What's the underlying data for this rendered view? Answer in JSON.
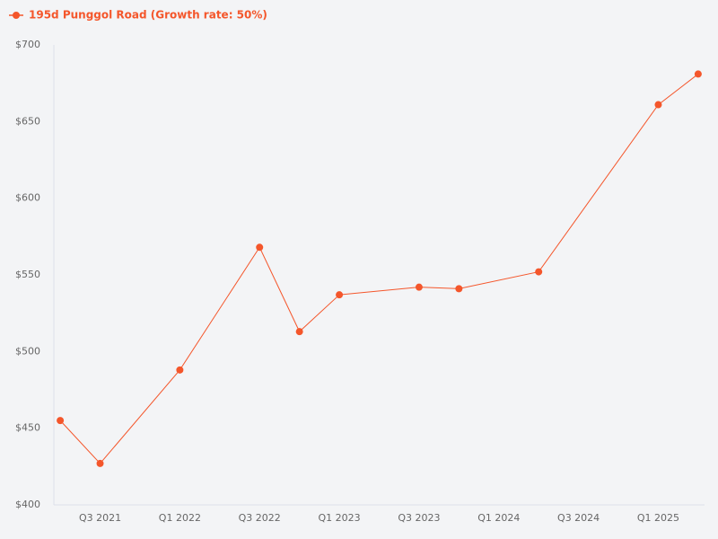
{
  "chart_data": {
    "type": "line",
    "series": [
      {
        "name": "195d Punggol Road (Growth rate: 50%)",
        "color": "#f4562b",
        "x": [
          2021.25,
          2021.5,
          2022.0,
          2022.5,
          2022.75,
          2023.0,
          2023.5,
          2023.75,
          2024.25,
          2025.0,
          2025.25
        ],
        "values": [
          455,
          427,
          488,
          568,
          513,
          537,
          542,
          541,
          552,
          661,
          681
        ]
      }
    ],
    "xlim": [
      2021.21,
      2025.29
    ],
    "xticks": [
      {
        "value": 2021.5,
        "label": "Q3 2021"
      },
      {
        "value": 2022.0,
        "label": "Q1 2022"
      },
      {
        "value": 2022.5,
        "label": "Q3 2022"
      },
      {
        "value": 2023.0,
        "label": "Q1 2023"
      },
      {
        "value": 2023.5,
        "label": "Q3 2023"
      },
      {
        "value": 2024.0,
        "label": "Q1 2024"
      },
      {
        "value": 2024.5,
        "label": "Q3 2024"
      },
      {
        "value": 2025.0,
        "label": "Q1 2025"
      }
    ],
    "ylim": [
      400,
      700
    ],
    "yticks": [
      {
        "value": 400,
        "label": "$400"
      },
      {
        "value": 450,
        "label": "$450"
      },
      {
        "value": 500,
        "label": "$500"
      },
      {
        "value": 550,
        "label": "$550"
      },
      {
        "value": 600,
        "label": "$600"
      },
      {
        "value": 650,
        "label": "$650"
      },
      {
        "value": 700,
        "label": "$700"
      }
    ],
    "legend": "top-left"
  }
}
